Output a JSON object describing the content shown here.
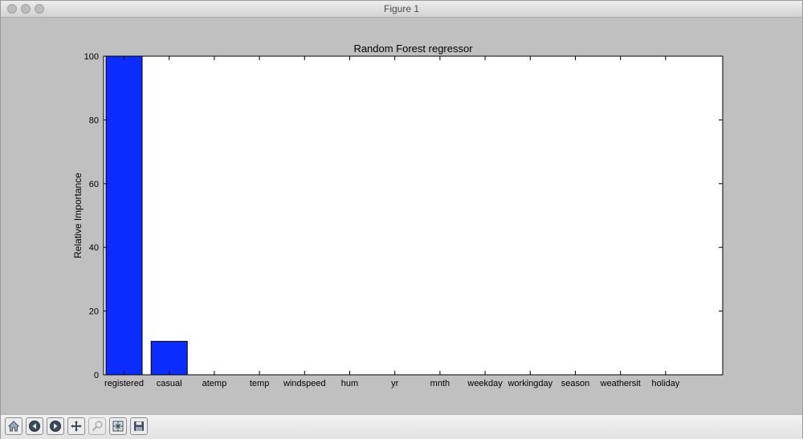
{
  "window": {
    "title": "Figure 1"
  },
  "toolbar": {
    "buttons": [
      {
        "name": "home-icon"
      },
      {
        "name": "back-icon"
      },
      {
        "name": "forward-icon"
      },
      {
        "name": "pan-icon"
      },
      {
        "name": "zoom-icon"
      },
      {
        "name": "subplots-icon"
      },
      {
        "name": "save-icon"
      }
    ]
  },
  "chart_data": {
    "type": "bar",
    "title": "Random Forest regressor",
    "xlabel": "",
    "ylabel": "Relative Importance",
    "categories": [
      "registered",
      "casual",
      "atemp",
      "temp",
      "windspeed",
      "hum",
      "yr",
      "mnth",
      "weekday",
      "workingday",
      "season",
      "weathersit",
      "holiday"
    ],
    "values": [
      100,
      10.5,
      0,
      0,
      0,
      0,
      0,
      0,
      0,
      0,
      0,
      0,
      0
    ],
    "ylim": [
      0,
      100
    ],
    "yticks": [
      0,
      20,
      40,
      60,
      80,
      100
    ],
    "bar_color": "#0a2cff",
    "grid": false
  }
}
